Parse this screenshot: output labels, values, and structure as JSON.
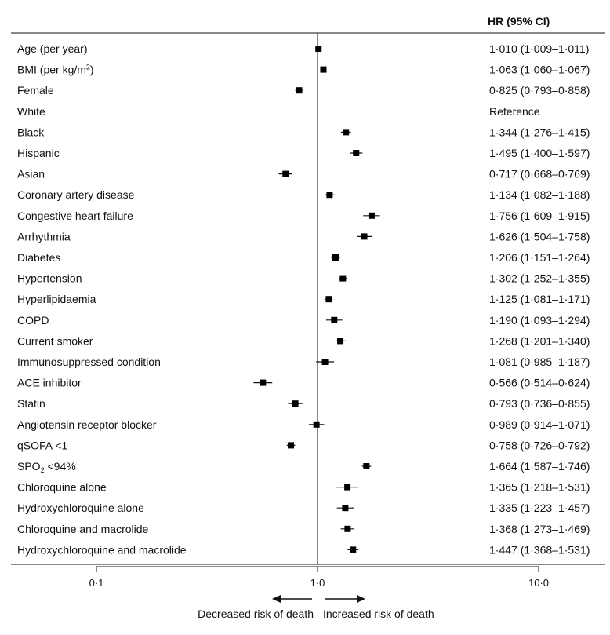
{
  "chart_data": {
    "type": "forest",
    "header": "HR (95% CI)",
    "x_scale": "log",
    "xlim": [
      0.1,
      10.0
    ],
    "ticks": [
      {
        "value": 0.1,
        "label": "0·1"
      },
      {
        "value": 1.0,
        "label": "1·0"
      },
      {
        "value": 10.0,
        "label": "10·0"
      }
    ],
    "reference_line": 1.0,
    "direction_left": "Decreased risk of death",
    "direction_right": "Increased risk of death",
    "rows": [
      {
        "label": "Age (per year)",
        "hr": 1.01,
        "lo": 1.009,
        "hi": 1.011,
        "text": "1·010 (1·009–1·011)"
      },
      {
        "label": "BMI (per kg/m",
        "sup": "2",
        "label_after": ")",
        "hr": 1.063,
        "lo": 1.06,
        "hi": 1.067,
        "text": "1·063 (1·060–1·067)"
      },
      {
        "label": "Female",
        "hr": 0.825,
        "lo": 0.793,
        "hi": 0.858,
        "text": "0·825 (0·793–0·858)"
      },
      {
        "label": "White",
        "hr": null,
        "lo": null,
        "hi": null,
        "text": "Reference"
      },
      {
        "label": "Black",
        "hr": 1.344,
        "lo": 1.276,
        "hi": 1.415,
        "text": "1·344 (1·276–1·415)"
      },
      {
        "label": "Hispanic",
        "hr": 1.495,
        "lo": 1.4,
        "hi": 1.597,
        "text": "1·495 (1·400–1·597)"
      },
      {
        "label": "Asian",
        "hr": 0.717,
        "lo": 0.668,
        "hi": 0.769,
        "text": "0·717 (0·668–0·769)"
      },
      {
        "label": "Coronary artery disease",
        "hr": 1.134,
        "lo": 1.082,
        "hi": 1.188,
        "text": "1·134 (1·082–1·188)"
      },
      {
        "label": "Congestive heart failure",
        "hr": 1.756,
        "lo": 1.609,
        "hi": 1.915,
        "text": "1·756 (1·609–1·915)"
      },
      {
        "label": "Arrhythmia",
        "hr": 1.626,
        "lo": 1.504,
        "hi": 1.758,
        "text": "1·626 (1·504–1·758)"
      },
      {
        "label": "Diabetes",
        "hr": 1.206,
        "lo": 1.151,
        "hi": 1.264,
        "text": "1·206 (1·151–1·264)"
      },
      {
        "label": "Hypertension",
        "hr": 1.302,
        "lo": 1.252,
        "hi": 1.355,
        "text": "1·302 (1·252–1·355)"
      },
      {
        "label": "Hyperlipidaemia",
        "hr": 1.125,
        "lo": 1.081,
        "hi": 1.171,
        "text": "1·125 (1·081–1·171)"
      },
      {
        "label": "COPD",
        "hr": 1.19,
        "lo": 1.093,
        "hi": 1.294,
        "text": "1·190 (1·093–1·294)"
      },
      {
        "label": "Current smoker",
        "hr": 1.268,
        "lo": 1.201,
        "hi": 1.34,
        "text": "1·268 (1·201–1·340)"
      },
      {
        "label": "Immunosuppressed condition",
        "hr": 1.081,
        "lo": 0.985,
        "hi": 1.187,
        "text": "1·081 (0·985–1·187)"
      },
      {
        "label": "ACE inhibitor",
        "hr": 0.566,
        "lo": 0.514,
        "hi": 0.624,
        "text": "0·566 (0·514–0·624)"
      },
      {
        "label": "Statin",
        "hr": 0.793,
        "lo": 0.736,
        "hi": 0.855,
        "text": "0·793 (0·736–0·855)"
      },
      {
        "label": "Angiotensin receptor blocker",
        "hr": 0.989,
        "lo": 0.914,
        "hi": 1.071,
        "text": "0·989 (0·914–1·071)"
      },
      {
        "label": "qSOFA <1",
        "hr": 0.758,
        "lo": 0.726,
        "hi": 0.792,
        "text": "0·758 (0·726–0·792)"
      },
      {
        "label": "SPO",
        "sub": "2",
        "label_after": " <94%",
        "hr": 1.664,
        "lo": 1.587,
        "hi": 1.746,
        "text": "1·664 (1·587–1·746)"
      },
      {
        "label": "Chloroquine alone",
        "hr": 1.365,
        "lo": 1.218,
        "hi": 1.531,
        "text": "1·365 (1·218–1·531)"
      },
      {
        "label": "Hydroxychloroquine alone",
        "hr": 1.335,
        "lo": 1.223,
        "hi": 1.457,
        "text": "1·335 (1·223–1·457)"
      },
      {
        "label": "Chloroquine and macrolide",
        "hr": 1.368,
        "lo": 1.273,
        "hi": 1.469,
        "text": "1·368 (1·273–1·469)"
      },
      {
        "label": "Hydroxychloroquine and macrolide",
        "hr": 1.447,
        "lo": 1.368,
        "hi": 1.531,
        "text": "1·447 (1·368–1·531)"
      }
    ]
  }
}
